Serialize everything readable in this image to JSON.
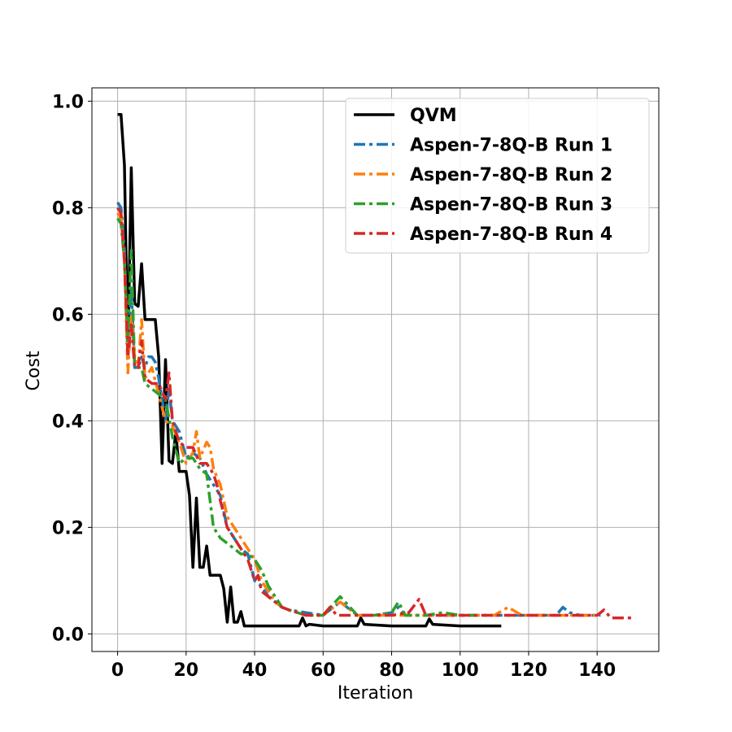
{
  "chart_data": {
    "type": "line",
    "xlabel": "Iteration",
    "ylabel": "Cost",
    "xlim": [
      -7.5,
      158
    ],
    "ylim": [
      -0.033,
      1.025
    ],
    "xticks": [
      0,
      20,
      40,
      60,
      80,
      100,
      120,
      140
    ],
    "yticks": [
      0.0,
      0.2,
      0.4,
      0.6,
      0.8,
      1.0
    ],
    "xtick_labels": [
      "0",
      "20",
      "40",
      "60",
      "80",
      "100",
      "120",
      "140"
    ],
    "ytick_labels": [
      "0.0",
      "0.2",
      "0.4",
      "0.6",
      "0.8",
      "1.0"
    ],
    "grid": true,
    "legend_position": "top-right",
    "series": [
      {
        "name": "QVM",
        "color": "#000000",
        "style": "solid",
        "x": [
          0,
          1,
          2,
          3,
          4,
          5,
          6,
          7,
          8,
          9,
          10,
          11,
          12,
          13,
          14,
          15,
          16,
          17,
          18,
          19,
          20,
          21,
          22,
          23,
          24,
          25,
          26,
          27,
          28,
          29,
          30,
          31,
          32,
          33,
          34,
          35,
          36,
          37,
          38,
          40,
          50,
          53,
          54,
          55,
          56,
          60,
          70,
          71,
          72,
          80,
          90,
          91,
          92,
          100,
          112
        ],
        "y": [
          0.975,
          0.975,
          0.88,
          0.52,
          0.875,
          0.62,
          0.615,
          0.695,
          0.59,
          0.59,
          0.59,
          0.59,
          0.52,
          0.32,
          0.515,
          0.325,
          0.32,
          0.38,
          0.305,
          0.305,
          0.305,
          0.26,
          0.125,
          0.255,
          0.125,
          0.125,
          0.165,
          0.11,
          0.11,
          0.11,
          0.11,
          0.085,
          0.022,
          0.088,
          0.022,
          0.022,
          0.042,
          0.015,
          0.015,
          0.015,
          0.015,
          0.015,
          0.03,
          0.015,
          0.018,
          0.015,
          0.015,
          0.03,
          0.018,
          0.015,
          0.015,
          0.028,
          0.018,
          0.015,
          0.015
        ]
      },
      {
        "name": "Aspen-7-8Q-B Run 1",
        "color": "#1f77b4",
        "style": "dashdot",
        "x": [
          0,
          1,
          2,
          3,
          4,
          5,
          6,
          7,
          8,
          9,
          10,
          11,
          12,
          13,
          14,
          15,
          16,
          18,
          20,
          22,
          24,
          26,
          28,
          30,
          32,
          34,
          36,
          38,
          40,
          42,
          44,
          46,
          48,
          50,
          55,
          60,
          65,
          70,
          75,
          80,
          82,
          84,
          86,
          90,
          100,
          110,
          120,
          128,
          130,
          132,
          135,
          141
        ],
        "y": [
          0.81,
          0.8,
          0.72,
          0.52,
          0.65,
          0.5,
          0.5,
          0.52,
          0.5,
          0.52,
          0.52,
          0.51,
          0.48,
          0.44,
          0.4,
          0.46,
          0.4,
          0.38,
          0.33,
          0.34,
          0.33,
          0.3,
          0.28,
          0.26,
          0.2,
          0.18,
          0.16,
          0.15,
          0.1,
          0.09,
          0.07,
          0.06,
          0.05,
          0.045,
          0.04,
          0.035,
          0.06,
          0.035,
          0.035,
          0.04,
          0.05,
          0.035,
          0.035,
          0.035,
          0.035,
          0.035,
          0.035,
          0.035,
          0.05,
          0.04,
          0.035,
          0.035
        ]
      },
      {
        "name": "Aspen-7-8Q-B Run 2",
        "color": "#ff7f0e",
        "style": "dashdot",
        "x": [
          0,
          1,
          2,
          3,
          4,
          5,
          6,
          7,
          8,
          10,
          12,
          14,
          16,
          18,
          20,
          22,
          23,
          24,
          26,
          27,
          28,
          30,
          32,
          34,
          36,
          38,
          40,
          42,
          44,
          46,
          48,
          50,
          55,
          60,
          65,
          70,
          75,
          80,
          90,
          100,
          110,
          114,
          118,
          120,
          125,
          130,
          135,
          140
        ],
        "y": [
          0.79,
          0.78,
          0.7,
          0.49,
          0.6,
          0.52,
          0.5,
          0.59,
          0.48,
          0.5,
          0.45,
          0.4,
          0.39,
          0.36,
          0.32,
          0.34,
          0.38,
          0.33,
          0.36,
          0.35,
          0.31,
          0.28,
          0.22,
          0.2,
          0.18,
          0.16,
          0.14,
          0.1,
          0.08,
          0.06,
          0.05,
          0.045,
          0.035,
          0.035,
          0.06,
          0.035,
          0.035,
          0.035,
          0.035,
          0.035,
          0.035,
          0.05,
          0.035,
          0.035,
          0.035,
          0.035,
          0.035,
          0.035
        ]
      },
      {
        "name": "Aspen-7-8Q-B Run 3",
        "color": "#2ca02c",
        "style": "dashdot",
        "x": [
          0,
          1,
          2,
          3,
          4,
          5,
          6,
          7,
          8,
          10,
          12,
          14,
          16,
          18,
          20,
          22,
          24,
          26,
          28,
          30,
          32,
          34,
          36,
          38,
          40,
          42,
          44,
          46,
          48,
          50,
          55,
          60,
          65,
          70,
          75,
          80,
          82,
          84,
          86,
          90,
          95,
          100,
          105
        ],
        "y": [
          0.78,
          0.77,
          0.7,
          0.55,
          0.72,
          0.5,
          0.5,
          0.5,
          0.47,
          0.46,
          0.45,
          0.44,
          0.37,
          0.32,
          0.33,
          0.33,
          0.31,
          0.3,
          0.2,
          0.18,
          0.17,
          0.16,
          0.15,
          0.15,
          0.14,
          0.12,
          0.09,
          0.07,
          0.05,
          0.045,
          0.035,
          0.035,
          0.07,
          0.035,
          0.035,
          0.04,
          0.06,
          0.035,
          0.035,
          0.035,
          0.04,
          0.035,
          0.035
        ]
      },
      {
        "name": "Aspen-7-8Q-B Run 4",
        "color": "#d62728",
        "style": "dashdot",
        "x": [
          0,
          1,
          2,
          3,
          4,
          5,
          6,
          7,
          8,
          10,
          12,
          14,
          15,
          16,
          18,
          20,
          22,
          24,
          26,
          28,
          29,
          30,
          32,
          34,
          36,
          38,
          40,
          41,
          42,
          44,
          46,
          48,
          50,
          55,
          60,
          62,
          64,
          66,
          70,
          75,
          80,
          85,
          88,
          90,
          95,
          100,
          110,
          120,
          130,
          140,
          142,
          144,
          150
        ],
        "y": [
          0.8,
          0.79,
          0.7,
          0.52,
          0.58,
          0.5,
          0.5,
          0.55,
          0.48,
          0.47,
          0.47,
          0.44,
          0.49,
          0.4,
          0.36,
          0.35,
          0.35,
          0.32,
          0.32,
          0.3,
          0.28,
          0.25,
          0.2,
          0.18,
          0.16,
          0.14,
          0.1,
          0.11,
          0.08,
          0.07,
          0.06,
          0.05,
          0.045,
          0.035,
          0.035,
          0.05,
          0.035,
          0.035,
          0.035,
          0.035,
          0.035,
          0.04,
          0.065,
          0.035,
          0.035,
          0.035,
          0.035,
          0.035,
          0.035,
          0.035,
          0.045,
          0.03,
          0.03
        ]
      }
    ]
  }
}
